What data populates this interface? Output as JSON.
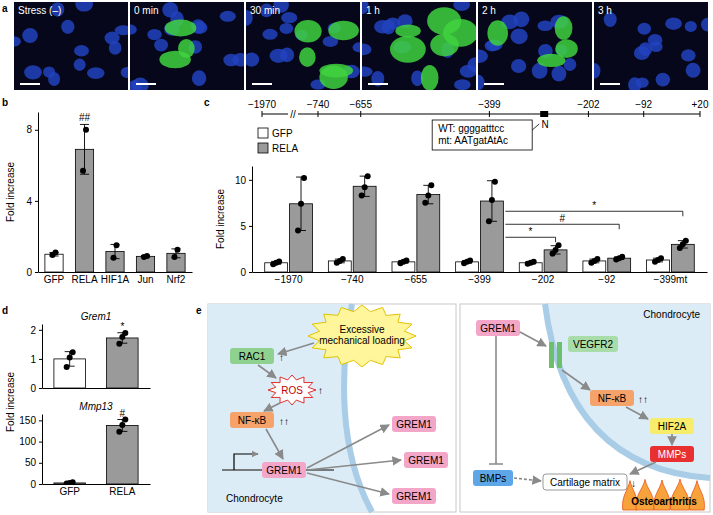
{
  "panel_labels": [
    "a",
    "b",
    "c",
    "d",
    "e"
  ],
  "microscopy": {
    "labels": [
      "Stress (–)",
      "0 min",
      "30 min",
      "1 h",
      "2 h",
      "3 h"
    ]
  },
  "promoter": {
    "positions": [
      {
        "value": -1970,
        "label": "−1970"
      },
      {
        "value": -740,
        "label": "−740"
      },
      {
        "value": -655,
        "label": "−655"
      },
      {
        "value": -399,
        "label": "−399"
      },
      {
        "value": -202,
        "label": "−202"
      },
      {
        "value": -92,
        "label": "−92"
      },
      {
        "value": 20,
        "label": "+20"
      }
    ],
    "break": "//",
    "element": {
      "label": "N",
      "position": -290
    },
    "sequences": [
      "WT: ggggatttcc",
      "mt: AATgatAtAc"
    ]
  },
  "chart_data": [
    {
      "type": "bar",
      "categories": [
        "GFP",
        "RELA",
        "HIF1A",
        "Jun",
        "Nrf2"
      ],
      "series": [
        {
          "colors": [
            "#ffffff",
            "#9a9a9a",
            "#9a9a9a",
            "#9a9a9a",
            "#9a9a9a"
          ],
          "values": [
            1.0,
            6.9,
            1.15,
            0.88,
            1.05
          ],
          "errors": [
            0.1,
            1.4,
            0.4,
            0.05,
            0.25
          ],
          "points": [
            [
              0.95,
              1.1
            ],
            [
              5.7,
              8.0
            ],
            [
              0.8,
              1.5
            ],
            [
              0.85,
              0.9
            ],
            [
              0.85,
              1.25
            ]
          ]
        }
      ],
      "ylim": [
        0,
        9
      ],
      "yticks": [
        0,
        4,
        8
      ],
      "y_label": "Fold increase",
      "annotations": [
        {
          "text": "##",
          "category": "RELA"
        }
      ]
    },
    {
      "type": "bar",
      "categories": [
        "−1970",
        "−740",
        "−655",
        "−399",
        "−202",
        "−92",
        "−399mt"
      ],
      "series": [
        {
          "name": "GFP",
          "color": "#ffffff",
          "values": [
            1.0,
            1.2,
            1.1,
            1.1,
            1.0,
            1.2,
            1.3
          ],
          "errors": [
            0.15,
            0.2,
            0.15,
            0.15,
            0.1,
            0.2,
            0.2
          ],
          "points": [
            [
              0.85,
              1.0,
              1.15
            ],
            [
              1.0,
              1.2,
              1.4
            ],
            [
              0.95,
              1.1,
              1.25
            ],
            [
              0.95,
              1.1,
              1.25
            ],
            [
              0.9,
              1.0,
              1.1
            ],
            [
              1.0,
              1.2,
              1.4
            ],
            [
              1.1,
              1.3,
              1.5
            ]
          ]
        },
        {
          "name": "RELA",
          "color": "#9a9a9a",
          "values": [
            7.4,
            9.3,
            8.4,
            7.7,
            2.4,
            1.5,
            3.0
          ],
          "errors": [
            2.9,
            1.1,
            1.0,
            2.2,
            0.45,
            0.15,
            0.4
          ],
          "points": [
            [
              4.5,
              7.4,
              10.2
            ],
            [
              8.3,
              9.2,
              10.4
            ],
            [
              7.5,
              8.3,
              9.4
            ],
            [
              5.5,
              7.8,
              9.8
            ],
            [
              2.0,
              2.4,
              2.9
            ],
            [
              1.35,
              1.5,
              1.65
            ],
            [
              2.6,
              3.0,
              3.4
            ]
          ]
        }
      ],
      "ylim": [
        0,
        11.5
      ],
      "yticks": [
        0,
        5,
        10
      ],
      "y_label": "Fold increase",
      "legend": "upper left",
      "annotations": [
        {
          "text": "*",
          "between": [
            "−399",
            "−202"
          ]
        },
        {
          "text": "#",
          "between": [
            "−399",
            "−92"
          ]
        },
        {
          "text": "*",
          "between": [
            "−399",
            "−399mt"
          ]
        }
      ]
    },
    {
      "type": "bar",
      "title": "Grem1",
      "categories": [
        "GFP",
        "RELA"
      ],
      "tick_labels": "y",
      "series": [
        {
          "colors": [
            "#ffffff",
            "#9a9a9a"
          ],
          "values": [
            1.0,
            1.72
          ],
          "errors": [
            0.25,
            0.18
          ],
          "points": [
            [
              0.72,
              1.05,
              1.23
            ],
            [
              1.52,
              1.75,
              1.89
            ]
          ]
        }
      ],
      "ylim": [
        0,
        2.2
      ],
      "yticks": [
        0,
        1,
        2
      ],
      "y_label": "Fold increase",
      "annotations": [
        {
          "text": "*",
          "category": "RELA"
        }
      ]
    },
    {
      "type": "bar",
      "title": "Mmp13",
      "categories": [
        "GFP",
        "RELA"
      ],
      "series": [
        {
          "colors": [
            "#ffffff",
            "#9a9a9a"
          ],
          "values": [
            2.5,
            138
          ],
          "errors": [
            1.5,
            14
          ],
          "points": [
            [
              1,
              2.5,
              4
            ],
            [
              123,
              139,
              152
            ]
          ]
        }
      ],
      "ylim": [
        0,
        165
      ],
      "yticks": [
        0,
        50,
        100,
        150
      ],
      "annotations": [
        {
          "text": "#",
          "category": "RELA"
        }
      ]
    }
  ],
  "diagram": {
    "left": {
      "cell": "Chondrocyte",
      "trigger": "Excessive mechanical loading",
      "rac1": "RAC1",
      "rac1_change": "↑",
      "ros": "ROS",
      "ros_change": "↑",
      "nfkb": "NF-κB",
      "nfkb_change": "↑↑",
      "product": "GREM1"
    },
    "right": {
      "cell": "Chondrocyte",
      "ligand": "GREM1",
      "receptor": "VEGFR2",
      "nfkb": "NF-κB",
      "nfkb_change": "↑↑",
      "tf": "HIF2A",
      "enzyme": "MMPs",
      "inhibited": "BMPs",
      "matrix": "Cartilage matrix",
      "matrix_change": "↓",
      "outcome": "Osteoarthritis"
    }
  }
}
